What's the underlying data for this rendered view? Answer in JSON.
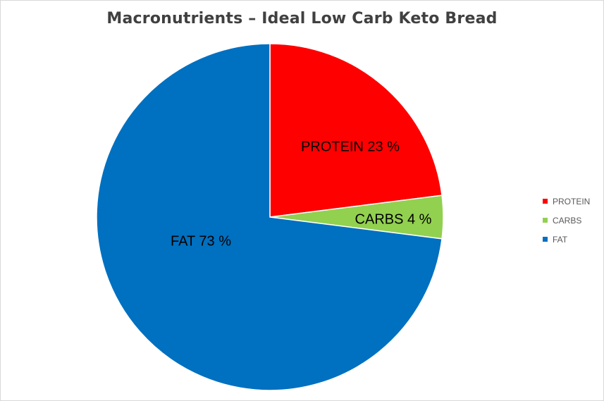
{
  "chart_data": {
    "type": "pie",
    "title": "Macronutrients – Ideal Low Carb Keto Bread",
    "start_angle_deg": 0,
    "direction": "clockwise",
    "legend_position": "right",
    "slices": [
      {
        "name": "PROTEIN",
        "value": 23,
        "label": "PROTEIN 23 %",
        "color": "#ff0000"
      },
      {
        "name": "CARBS",
        "value": 4,
        "label": "CARBS 4 %",
        "color": "#92d050"
      },
      {
        "name": "FAT",
        "value": 73,
        "label": "FAT 73 %",
        "color": "#0070c0"
      }
    ]
  }
}
